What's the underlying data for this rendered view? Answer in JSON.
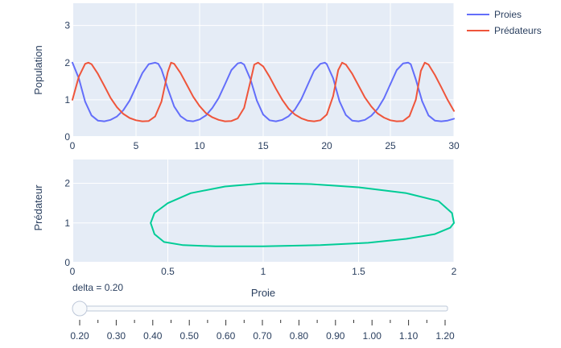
{
  "chart_data": [
    {
      "type": "line",
      "title": "",
      "xlabel": "",
      "ylabel": "Population",
      "xlim": [
        0,
        30
      ],
      "ylim": [
        0,
        3.6
      ],
      "x_ticks": [
        "0",
        "5",
        "10",
        "15",
        "20",
        "25",
        "30"
      ],
      "y_ticks": [
        "0",
        "1",
        "2",
        "3"
      ],
      "legend_position": "top-right",
      "grid": true,
      "series": [
        {
          "name": "Proies",
          "color": "#636efa",
          "x": [
            0,
            0.5,
            1,
            1.5,
            2,
            2.5,
            3,
            3.5,
            4,
            4.5,
            5,
            5.5,
            6,
            6.5,
            6.75,
            7,
            7.5,
            8,
            8.5,
            9,
            9.5,
            10,
            10.5,
            11,
            11.5,
            12,
            12.5,
            13,
            13.25,
            13.5,
            14,
            14.5,
            15,
            15.5,
            16,
            16.5,
            17,
            17.5,
            18,
            18.5,
            19,
            19.5,
            19.85,
            20,
            20.5,
            21,
            21.5,
            22,
            22.5,
            23,
            23.5,
            24,
            24.5,
            25,
            25.5,
            26,
            26.4,
            26.6,
            27,
            27.5,
            28,
            28.5,
            29,
            29.5,
            30
          ],
          "y": [
            2.0,
            1.58,
            0.95,
            0.58,
            0.44,
            0.42,
            0.46,
            0.55,
            0.72,
            0.98,
            1.35,
            1.72,
            1.96,
            2.0,
            1.97,
            1.82,
            1.3,
            0.82,
            0.56,
            0.44,
            0.42,
            0.47,
            0.58,
            0.78,
            1.05,
            1.42,
            1.8,
            1.98,
            2.0,
            1.95,
            1.55,
            0.98,
            0.6,
            0.45,
            0.42,
            0.46,
            0.56,
            0.74,
            1.02,
            1.4,
            1.78,
            1.97,
            2.0,
            1.96,
            1.58,
            0.96,
            0.59,
            0.44,
            0.42,
            0.46,
            0.57,
            0.76,
            1.04,
            1.42,
            1.8,
            1.98,
            2.0,
            1.96,
            1.55,
            0.96,
            0.58,
            0.44,
            0.42,
            0.44,
            0.49
          ]
        },
        {
          "name": "Prédateurs",
          "color": "#ef553b",
          "x": [
            0,
            0.5,
            1,
            1.25,
            1.5,
            2,
            2.5,
            3,
            3.5,
            4,
            4.5,
            5,
            5.5,
            6,
            6.5,
            7,
            7.5,
            7.75,
            8,
            8.5,
            9,
            9.5,
            10,
            10.5,
            11,
            11.5,
            12,
            12.5,
            13,
            13.5,
            14,
            14.3,
            14.6,
            15,
            15.5,
            16,
            16.5,
            17,
            17.5,
            18,
            18.5,
            19,
            19.5,
            20,
            20.5,
            20.9,
            21.2,
            21.5,
            22,
            22.5,
            23,
            23.5,
            24,
            24.5,
            25,
            25.5,
            26,
            26.5,
            27,
            27.4,
            27.7,
            28,
            28.5,
            29,
            29.5,
            30
          ],
          "y": [
            1.0,
            1.62,
            1.97,
            2.0,
            1.96,
            1.7,
            1.38,
            1.05,
            0.8,
            0.62,
            0.51,
            0.45,
            0.42,
            0.43,
            0.55,
            0.95,
            1.75,
            2.0,
            1.97,
            1.72,
            1.4,
            1.08,
            0.83,
            0.64,
            0.53,
            0.46,
            0.42,
            0.43,
            0.5,
            0.78,
            1.5,
            1.95,
            2.0,
            1.9,
            1.62,
            1.3,
            1.0,
            0.76,
            0.6,
            0.5,
            0.44,
            0.42,
            0.45,
            0.6,
            1.1,
            1.8,
            2.0,
            1.95,
            1.7,
            1.38,
            1.06,
            0.82,
            0.63,
            0.52,
            0.45,
            0.42,
            0.43,
            0.56,
            1.0,
            1.78,
            2.0,
            1.95,
            1.67,
            1.34,
            1.0,
            0.7
          ]
        }
      ]
    },
    {
      "type": "line",
      "title": "",
      "xlabel": "Proie",
      "ylabel": "Prédateur",
      "xlim": [
        0,
        2
      ],
      "ylim": [
        0,
        2.6
      ],
      "x_ticks": [
        "0",
        "0.5",
        "1",
        "1.5",
        "2"
      ],
      "y_ticks": [
        "0",
        "1",
        "2"
      ],
      "grid": true,
      "series": [
        {
          "color": "#00cc96",
          "x": [
            2.0,
            1.98,
            1.9,
            1.75,
            1.55,
            1.3,
            1.0,
            0.75,
            0.58,
            0.48,
            0.43,
            0.41,
            0.43,
            0.5,
            0.62,
            0.8,
            1.0,
            1.25,
            1.5,
            1.75,
            1.92,
            1.99,
            2.0
          ],
          "y": [
            1.0,
            0.88,
            0.72,
            0.6,
            0.5,
            0.44,
            0.41,
            0.41,
            0.44,
            0.52,
            0.72,
            1.0,
            1.25,
            1.5,
            1.75,
            1.92,
            2.0,
            1.98,
            1.9,
            1.75,
            1.55,
            1.25,
            1.0
          ]
        }
      ]
    }
  ],
  "slider": {
    "label": "delta = 0.20",
    "value": 0.2,
    "ticks": [
      "0.20",
      "0.30",
      "0.40",
      "0.50",
      "0.60",
      "0.70",
      "0.80",
      "0.90",
      "1.00",
      "1.10",
      "1.20"
    ]
  }
}
